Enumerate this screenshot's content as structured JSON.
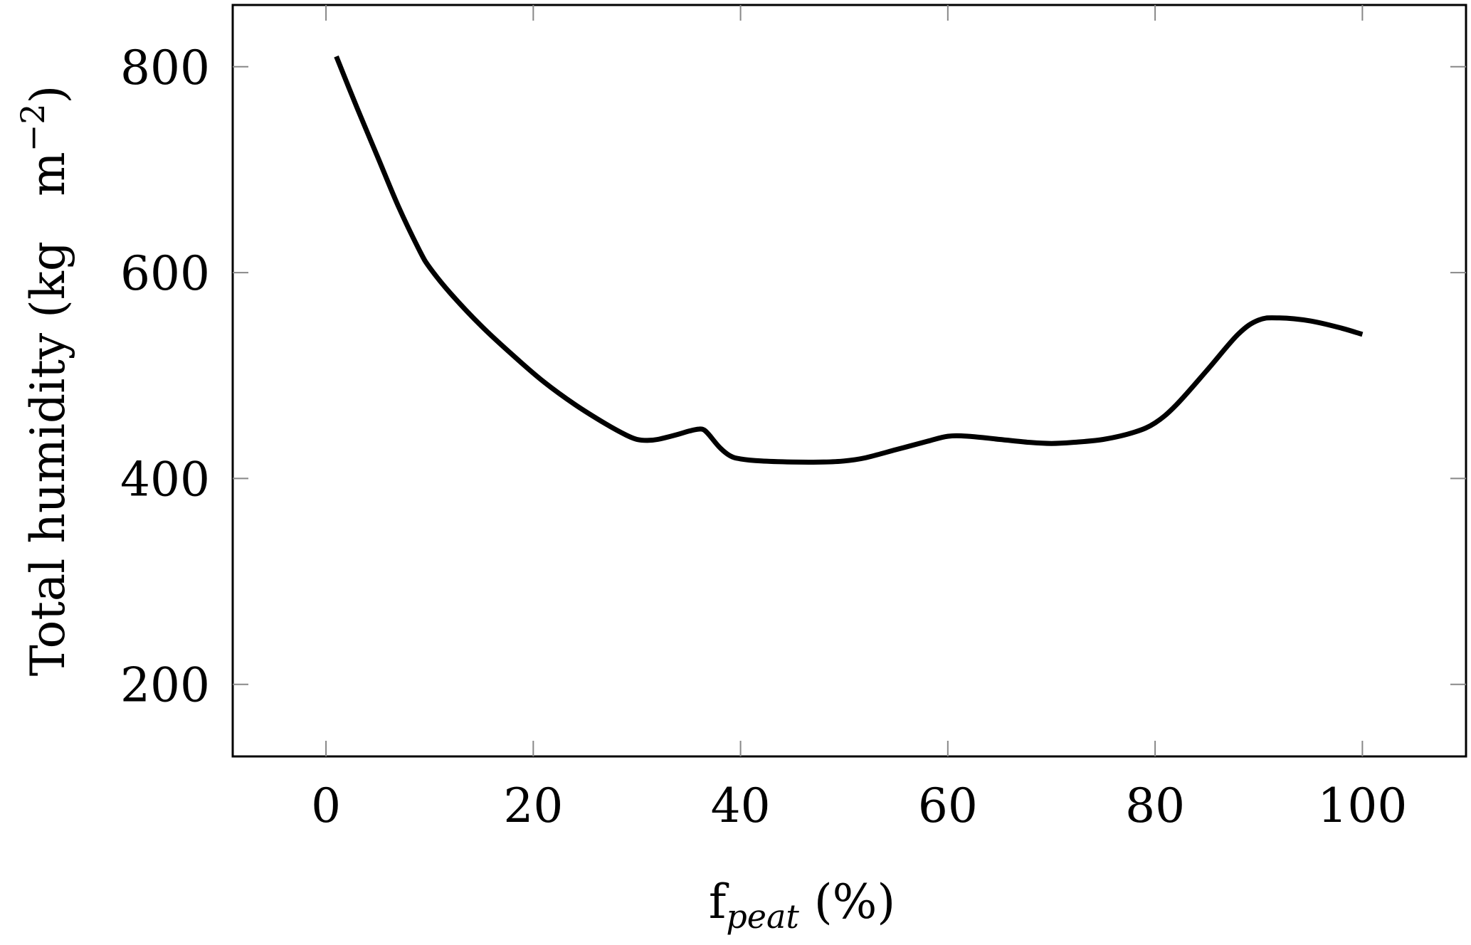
{
  "chart_data": {
    "type": "line",
    "title": "",
    "xlabel": "f",
    "xlabel_subscript": "peat",
    "xlabel_unit": " (%)",
    "ylabel": "Total humidity (kg   m",
    "ylabel_superscript": "−2",
    "ylabel_close": ")",
    "xlim": [
      -9,
      110
    ],
    "ylim": [
      130,
      860
    ],
    "xticks": [
      0,
      20,
      40,
      60,
      80,
      100
    ],
    "xtick_labels": [
      "0",
      "20",
      "40",
      "60",
      "80",
      "100"
    ],
    "yticks": [
      200,
      400,
      600,
      800
    ],
    "ytick_labels": [
      "200",
      "400",
      "600",
      "800"
    ],
    "grid": false,
    "legend": "none",
    "line_color": "#000000",
    "series": [
      {
        "x": [
          1,
          3,
          5,
          7,
          9,
          10,
          12,
          15,
          18,
          21,
          24,
          27,
          29,
          30,
          31,
          32,
          34,
          35,
          36,
          36.5,
          37,
          38,
          39,
          40,
          42,
          45,
          48,
          50,
          52,
          55,
          58,
          60,
          62,
          65,
          68,
          70,
          72,
          75,
          78,
          80,
          82,
          85,
          88,
          90,
          92,
          95,
          98,
          100
        ],
        "y": [
          810,
          760,
          712,
          664,
          622,
          605,
          580,
          548,
          520,
          494,
          472,
          453,
          442,
          438,
          437,
          438,
          443,
          446,
          448,
          447,
          442,
          430,
          422,
          419,
          417,
          416,
          416,
          417,
          420,
          428,
          436,
          441,
          441,
          438,
          435,
          434,
          435,
          438,
          445,
          454,
          471,
          505,
          540,
          554,
          556,
          553,
          546,
          540
        ]
      }
    ]
  }
}
